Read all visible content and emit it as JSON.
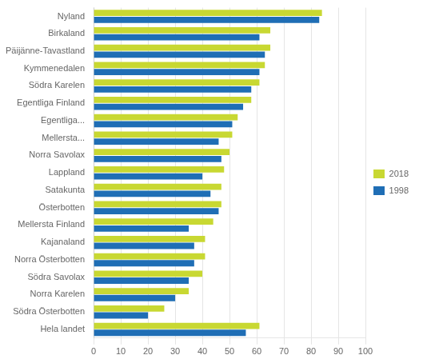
{
  "chart_data": {
    "type": "bar",
    "orientation": "horizontal",
    "categories": [
      "Nyland",
      "Birkaland",
      "Päijänne-Tavastland",
      "Kymmenedalen",
      "Södra Karelen",
      "Egentliga Finland",
      "Egentliga...",
      "Mellersta...",
      "Norra Savolax",
      "Lappland",
      "Satakunta",
      "Österbotten",
      "Mellersta Finland",
      "Kajanaland",
      "Norra Österbotten",
      "Södra Savolax",
      "Norra Karelen",
      "Södra Österbotten",
      "Hela landet"
    ],
    "series": [
      {
        "name": "2018",
        "color": "#c8d832",
        "values": [
          84,
          65,
          65,
          63,
          61,
          58,
          53,
          51,
          50,
          48,
          47,
          47,
          44,
          41,
          41,
          40,
          35,
          26,
          61
        ]
      },
      {
        "name": "1998",
        "color": "#1f6eb5",
        "values": [
          83,
          61,
          63,
          61,
          58,
          55,
          51,
          46,
          47,
          40,
          43,
          46,
          35,
          37,
          37,
          35,
          30,
          20,
          56
        ]
      }
    ],
    "xlim": [
      0,
      100
    ],
    "xticks": [
      0,
      10,
      20,
      30,
      40,
      50,
      60,
      70,
      80,
      90,
      100
    ],
    "grid": "x",
    "legend": "right"
  }
}
